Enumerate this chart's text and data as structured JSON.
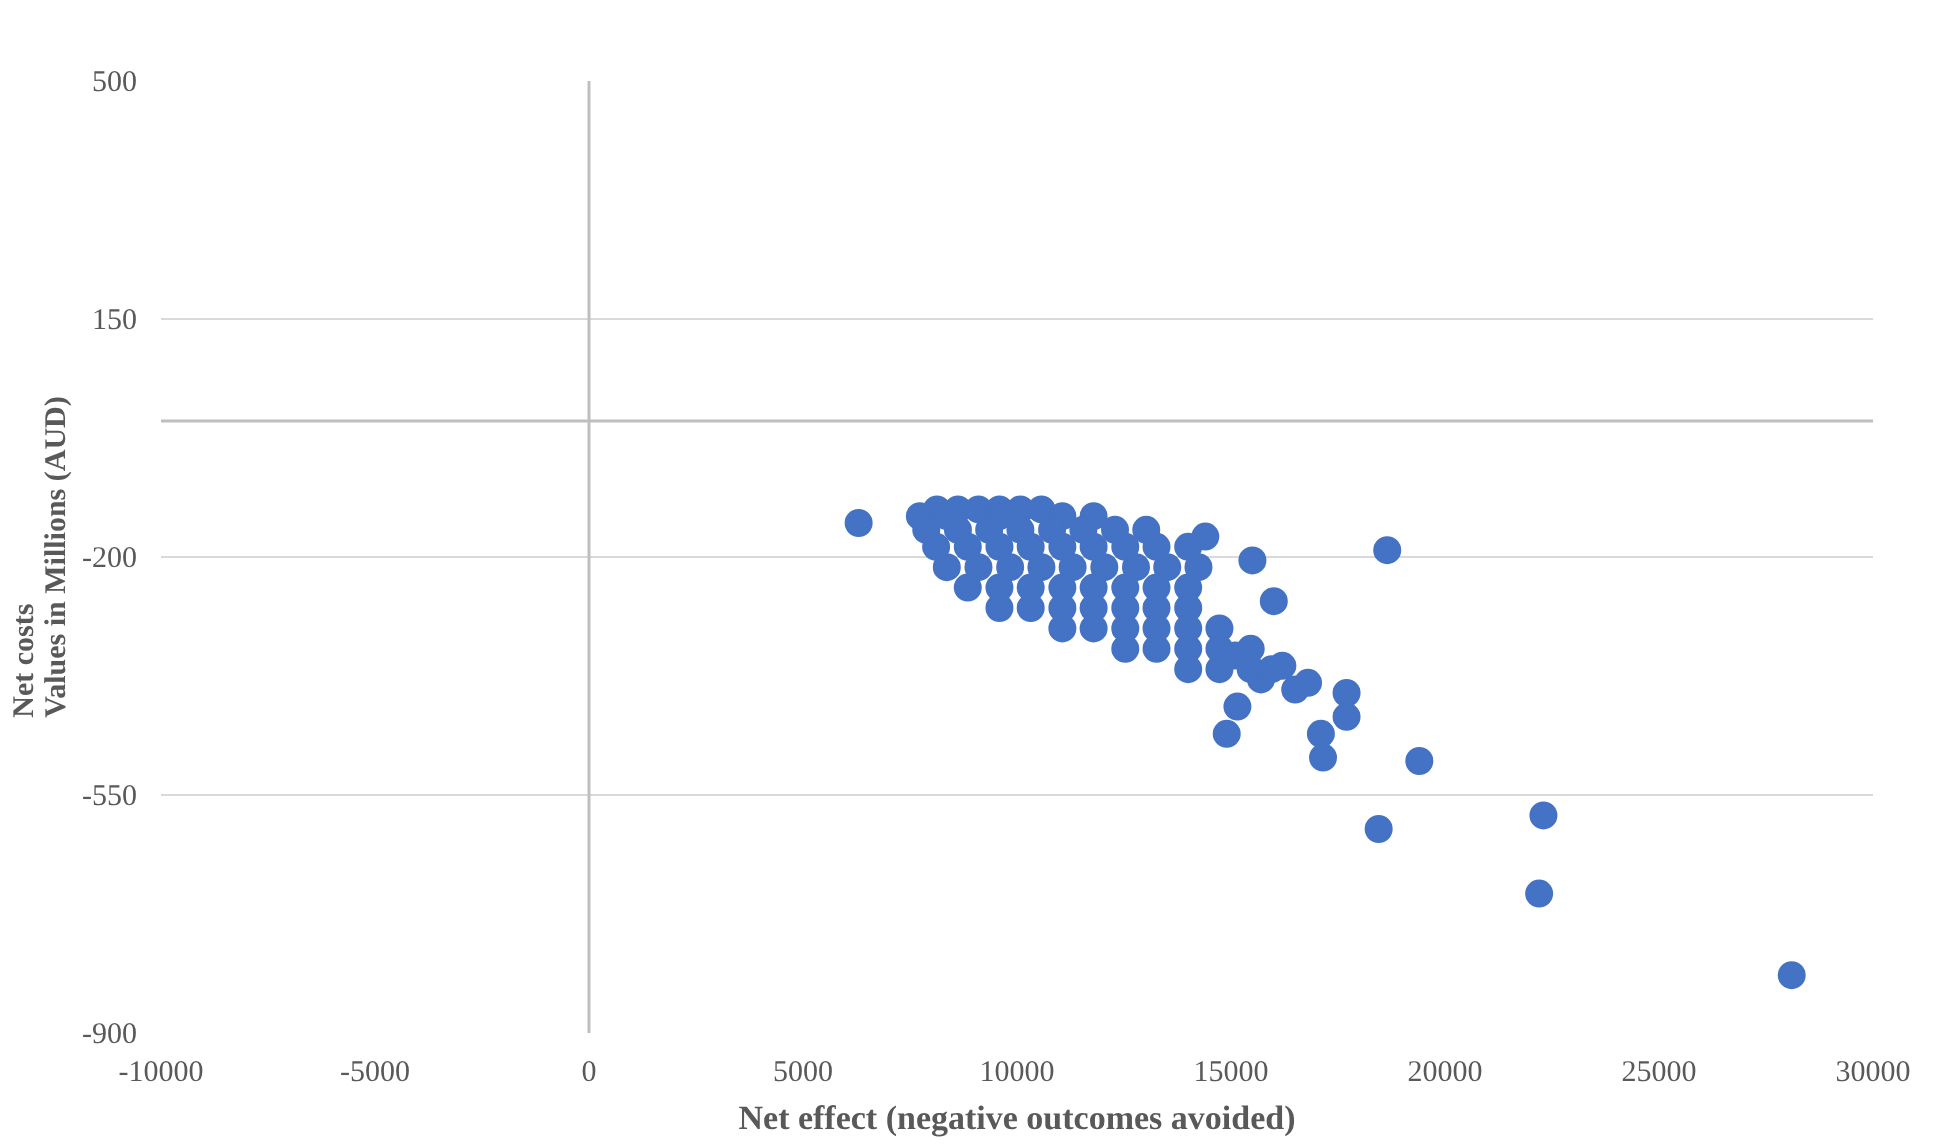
{
  "chart_data": {
    "type": "scatter",
    "xlabel": "Net effect (negative outcomes avoided)",
    "ylabel": "Net costs\nValues in Millions (AUD)",
    "xlim": [
      -10000,
      30000
    ],
    "ylim": [
      -900,
      500
    ],
    "xticks": [
      -10000,
      -5000,
      0,
      5000,
      10000,
      15000,
      20000,
      25000,
      30000
    ],
    "yticks": [
      -900,
      -550,
      -200,
      150,
      500
    ],
    "grid": "y",
    "marker": "circle",
    "series": [
      {
        "color": "#4472c4",
        "x": [
          6300,
          15500,
          16000,
          18650,
          16800,
          16500,
          15150,
          14900,
          17100,
          17150,
          17700,
          17700,
          19400,
          18450,
          22300,
          22200,
          28100,
          16200,
          15700,
          15100,
          14400,
          8130,
          8620,
          9100,
          9590,
          10080,
          10570,
          7730,
          8360,
          9590,
          11060,
          11790,
          7880,
          8620,
          9350,
          10080,
          10820,
          11550,
          12290,
          13020,
          8110,
          8850,
          9590,
          10320,
          11060,
          11790,
          12530,
          13260,
          14000,
          8360,
          9100,
          9840,
          10570,
          11300,
          12040,
          12780,
          13510,
          14240,
          8850,
          9590,
          10320,
          11060,
          11790,
          12530,
          13260,
          14000,
          9590,
          10320,
          11060,
          11790,
          12530,
          13260,
          14000,
          11060,
          11790,
          12530,
          13260,
          14000,
          14730,
          12530,
          13260,
          14000,
          14730,
          15460,
          14000,
          14730,
          15460,
          15950
        ],
        "values": [
          -150,
          -205,
          -265,
          -190,
          -385,
          -395,
          -420,
          -460,
          -460,
          -495,
          -400,
          -435,
          -500,
          -600,
          -580,
          -695,
          -815,
          -360,
          -380,
          -345,
          -170,
          -130,
          -130,
          -130,
          -130,
          -130,
          -130,
          -140,
          -140,
          -140,
          -140,
          -140,
          -160,
          -160,
          -160,
          -160,
          -160,
          -160,
          -160,
          -160,
          -185,
          -185,
          -185,
          -185,
          -185,
          -185,
          -185,
          -185,
          -185,
          -215,
          -215,
          -215,
          -215,
          -215,
          -215,
          -215,
          -215,
          -215,
          -245,
          -245,
          -245,
          -245,
          -245,
          -245,
          -245,
          -245,
          -275,
          -275,
          -275,
          -275,
          -275,
          -275,
          -275,
          -305,
          -305,
          -305,
          -305,
          -305,
          -305,
          -335,
          -335,
          -335,
          -335,
          -335,
          -365,
          -365,
          -365,
          -365
        ]
      }
    ]
  }
}
